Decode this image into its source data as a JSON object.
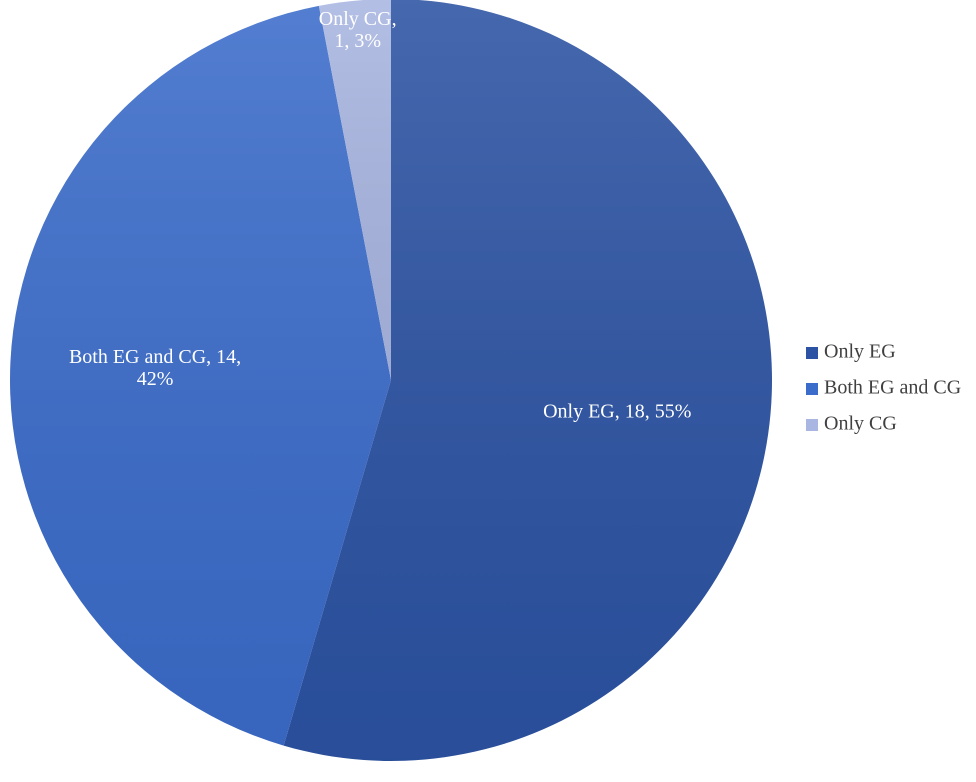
{
  "chart_data": {
    "type": "pie",
    "categories": [
      "Only EG",
      "Both EG and CG",
      "Only CG"
    ],
    "values": [
      18,
      14,
      1
    ],
    "value_labels": [
      "Only EG, 18, 55%",
      "Both EG and CG, 14, 42%",
      "Only CG, 1, 3%"
    ],
    "colors": [
      "#2c53a3",
      "#3b6cca",
      "#a9b6e1"
    ],
    "legend": "right"
  }
}
